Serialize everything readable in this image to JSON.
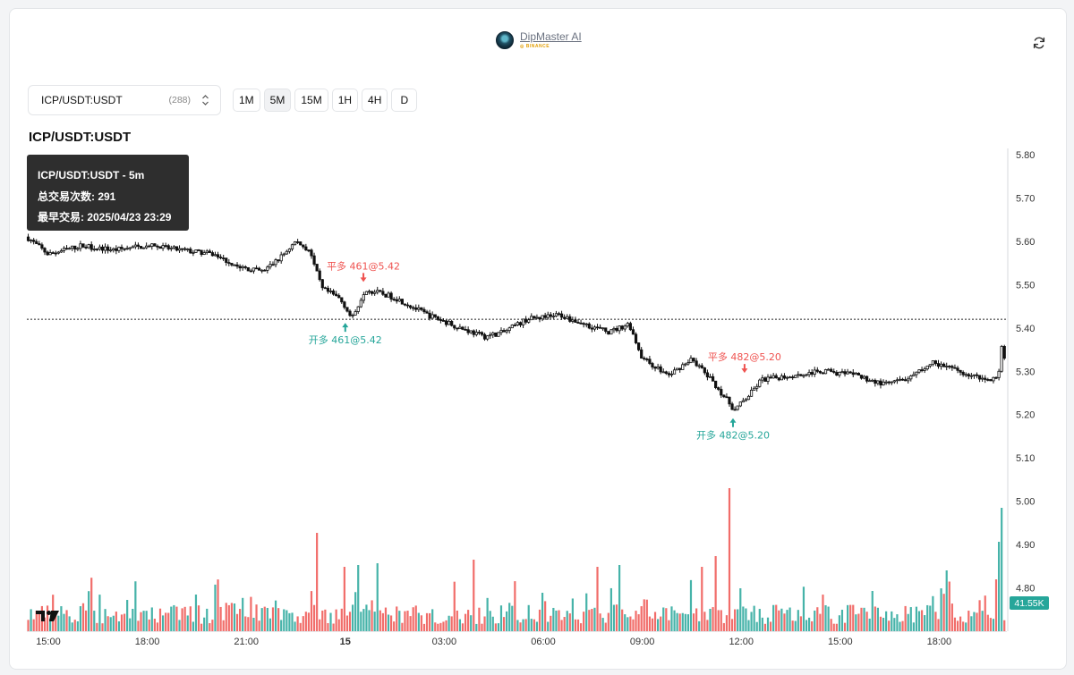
{
  "header": {
    "brand_name": "DipMaster AI",
    "brand_sub": "◎ BINANCE",
    "refresh_icon": "refresh-icon"
  },
  "controls": {
    "symbol": "ICP/USDT:USDT",
    "count": "(288)",
    "timeframes": [
      {
        "label": "1M",
        "active": false
      },
      {
        "label": "5M",
        "active": true
      },
      {
        "label": "15M",
        "active": false
      },
      {
        "label": "1H",
        "active": false
      },
      {
        "label": "4H",
        "active": false
      },
      {
        "label": "D",
        "active": false
      }
    ]
  },
  "chart_title": "ICP/USDT:USDT",
  "tooltip": {
    "line1": "ICP/USDT:USDT - 5m",
    "line2": "总交易次数: 291",
    "line3": "最早交易: 2025/04/23 23:29"
  },
  "colors": {
    "up": "#26a69a",
    "down": "#ef5350",
    "candle": "#111111"
  },
  "chart_data": {
    "type": "candlestick",
    "title": "",
    "xlabel": "",
    "ylabel": "",
    "ylim": [
      4.7,
      5.8
    ],
    "yticks": [
      5.8,
      5.7,
      5.6,
      5.5,
      5.4,
      5.3,
      5.2,
      5.1,
      5.0,
      4.9,
      4.8
    ],
    "xticks": [
      {
        "label": "15:00",
        "h": 15.0
      },
      {
        "label": "18:00",
        "h": 18.0
      },
      {
        "label": "21:00",
        "h": 21.0
      },
      {
        "label": "15",
        "h": 24.0,
        "bold": true
      },
      {
        "label": "03:00",
        "h": 27.0
      },
      {
        "label": "06:00",
        "h": 30.0
      },
      {
        "label": "09:00",
        "h": 33.0
      },
      {
        "label": "12:00",
        "h": 36.0
      },
      {
        "label": "15:00",
        "h": 39.0
      },
      {
        "label": "18:00",
        "h": 42.0
      }
    ],
    "x_range_hours": [
      14.35,
      44.05
    ],
    "price_path": [
      [
        14.35,
        5.61
      ],
      [
        15.0,
        5.57
      ],
      [
        16.0,
        5.59
      ],
      [
        17.0,
        5.58
      ],
      [
        18.0,
        5.59
      ],
      [
        19.0,
        5.58
      ],
      [
        20.0,
        5.57
      ],
      [
        20.8,
        5.54
      ],
      [
        21.5,
        5.53
      ],
      [
        22.0,
        5.56
      ],
      [
        22.5,
        5.6
      ],
      [
        22.9,
        5.58
      ],
      [
        23.3,
        5.49
      ],
      [
        23.8,
        5.47
      ],
      [
        24.0,
        5.45
      ],
      [
        24.2,
        5.42
      ],
      [
        24.6,
        5.49
      ],
      [
        25.5,
        5.47
      ],
      [
        26.5,
        5.43
      ],
      [
        27.5,
        5.4
      ],
      [
        28.2,
        5.38
      ],
      [
        28.8,
        5.39
      ],
      [
        29.5,
        5.42
      ],
      [
        30.5,
        5.43
      ],
      [
        31.2,
        5.41
      ],
      [
        32.0,
        5.39
      ],
      [
        32.6,
        5.41
      ],
      [
        33.0,
        5.33
      ],
      [
        33.8,
        5.29
      ],
      [
        34.5,
        5.33
      ],
      [
        35.2,
        5.27
      ],
      [
        35.8,
        5.21
      ],
      [
        36.3,
        5.25
      ],
      [
        36.6,
        5.28
      ],
      [
        37.5,
        5.29
      ],
      [
        38.5,
        5.3
      ],
      [
        39.5,
        5.29
      ],
      [
        40.3,
        5.27
      ],
      [
        41.0,
        5.28
      ],
      [
        41.8,
        5.32
      ],
      [
        42.6,
        5.3
      ],
      [
        43.4,
        5.28
      ],
      [
        43.8,
        5.29
      ],
      [
        43.9,
        5.36
      ],
      [
        44.05,
        5.29
      ]
    ],
    "ref_line": 5.42,
    "last_volume_label": "41.55K",
    "markers": [
      {
        "label": "平多 461@5.42",
        "h": 24.55,
        "price": 5.5,
        "side": "exit"
      },
      {
        "label": "开多 461@5.42",
        "h": 24.0,
        "price": 5.42,
        "side": "entry"
      },
      {
        "label": "平多 482@5.20",
        "h": 36.1,
        "price": 5.29,
        "side": "exit"
      },
      {
        "label": "开多 482@5.20",
        "h": 35.75,
        "price": 5.2,
        "side": "entry"
      }
    ]
  }
}
